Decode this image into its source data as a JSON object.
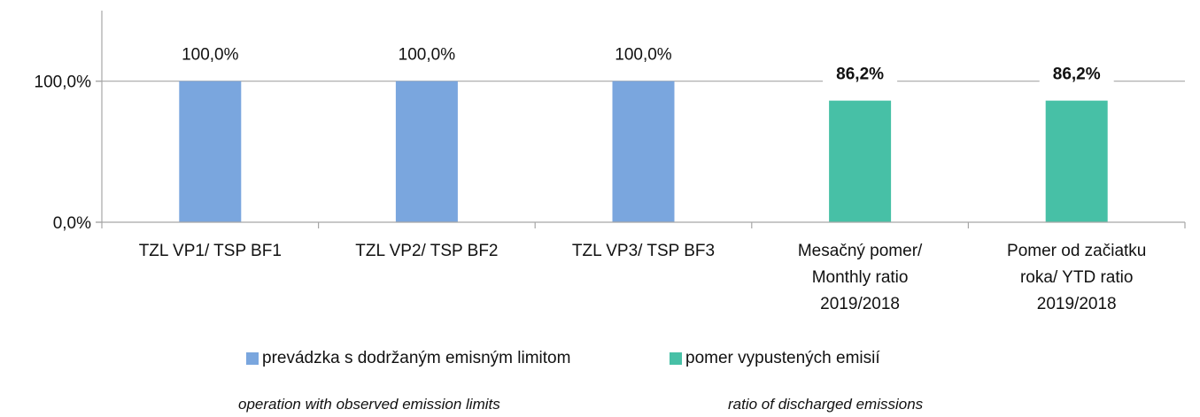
{
  "chart_data": {
    "type": "bar",
    "categories": [
      [
        "TZL VP1/ TSP BF1"
      ],
      [
        "TZL VP2/ TSP BF2"
      ],
      [
        "TZL VP3/ TSP BF3"
      ],
      [
        "Mesačný pomer/",
        "Monthly ratio",
        "2019/2018"
      ],
      [
        "Pomer  od začiatku",
        "roka/ YTD ratio",
        "2019/2018"
      ]
    ],
    "series": [
      {
        "name": "prevádzka s dodržaným emisným limitom",
        "subtitle": "operation with observed emission limits",
        "color": "#7aa6de",
        "values": [
          100.0,
          100.0,
          100.0,
          null,
          null
        ],
        "labels": [
          "100,0%",
          "100,0%",
          "100,0%",
          "",
          ""
        ],
        "label_bold": false
      },
      {
        "name": "pomer vypustených emisií",
        "subtitle": "ratio of discharged emissions",
        "color": "#47c0a6",
        "values": [
          null,
          null,
          null,
          86.2,
          86.2
        ],
        "labels": [
          "",
          "",
          "",
          "86,2%",
          "86,2%"
        ],
        "label_bold": true
      }
    ],
    "yticks": [
      0,
      100
    ],
    "ytick_labels": [
      "0,0%",
      "100,0%"
    ],
    "ylim": [
      0,
      150
    ],
    "gridlines": [
      100
    ],
    "legend_position": "bottom",
    "title": "",
    "xlabel": "",
    "ylabel": ""
  }
}
